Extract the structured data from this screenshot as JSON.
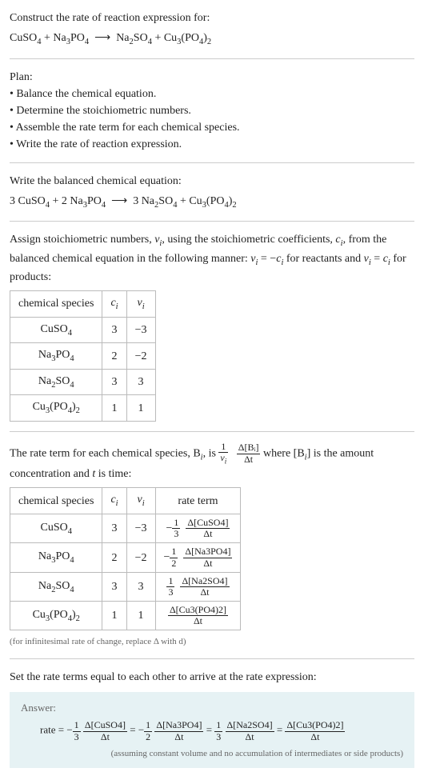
{
  "prompt": "Construct the rate of reaction expression for:",
  "unbalanced": {
    "lhs": [
      {
        "f": "CuSO",
        "s": "4"
      },
      {
        "f": "Na",
        "s": "3",
        "f2": "PO",
        "s2": "4"
      }
    ],
    "rhs": [
      {
        "f": "Na",
        "s": "2",
        "f2": "SO",
        "s2": "4"
      },
      {
        "f": "Cu",
        "s": "3",
        "f2": "(PO",
        "s2": "4",
        "f3": ")",
        "s3": "2"
      }
    ]
  },
  "plan_label": "Plan:",
  "plan": [
    "Balance the chemical equation.",
    "Determine the stoichiometric numbers.",
    "Assemble the rate term for each chemical species.",
    "Write the rate of reaction expression."
  ],
  "balanced_label": "Write the balanced chemical equation:",
  "balanced": {
    "lhs": [
      {
        "c": "3",
        "f": "CuSO",
        "s": "4"
      },
      {
        "c": "2",
        "f": "Na",
        "s": "3",
        "f2": "PO",
        "s2": "4"
      }
    ],
    "rhs": [
      {
        "c": "3",
        "f": "Na",
        "s": "2",
        "f2": "SO",
        "s2": "4"
      },
      {
        "c": "",
        "f": "Cu",
        "s": "3",
        "f2": "(PO",
        "s2": "4",
        "f3": ")",
        "s3": "2"
      }
    ]
  },
  "stoich_para_a": "Assign stoichiometric numbers, ",
  "stoich_para_b": ", using the stoichiometric coefficients, ",
  "stoich_para_c": ", from the balanced chemical equation in the following manner: ",
  "stoich_para_d": " for reactants and ",
  "stoich_para_e": " for products:",
  "nu_i": "ν",
  "c_i": "c",
  "table1": {
    "headers": [
      "chemical species",
      "cᵢ",
      "νᵢ"
    ],
    "rows": [
      [
        "CuSO₄",
        "3",
        "−3"
      ],
      [
        "Na₃PO₄",
        "2",
        "−2"
      ],
      [
        "Na₂SO₄",
        "3",
        "3"
      ],
      [
        "Cu₃(PO₄)₂",
        "1",
        "1"
      ]
    ]
  },
  "rate_para_a": "The rate term for each chemical species, B",
  "rate_para_b": ", is ",
  "rate_para_c": " where [B",
  "rate_para_d": "] is the amount concentration and ",
  "rate_para_e": " is time:",
  "t_var": "t",
  "rate_frac_outer_num": "1",
  "rate_frac_outer_den": "νᵢ",
  "rate_frac_inner_num": "Δ[Bᵢ]",
  "rate_frac_inner_den": "Δt",
  "table2": {
    "headers": [
      "chemical species",
      "cᵢ",
      "νᵢ",
      "rate term"
    ],
    "rows": [
      {
        "sp": "CuSO₄",
        "c": "3",
        "nu": "−3",
        "coef_num": "1",
        "coef_den": "3",
        "sign": "−",
        "conc": "Δ[CuSO4]"
      },
      {
        "sp": "Na₃PO₄",
        "c": "2",
        "nu": "−2",
        "coef_num": "1",
        "coef_den": "2",
        "sign": "−",
        "conc": "Δ[Na3PO4]"
      },
      {
        "sp": "Na₂SO₄",
        "c": "3",
        "nu": "3",
        "coef_num": "1",
        "coef_den": "3",
        "sign": "",
        "conc": "Δ[Na2SO4]"
      },
      {
        "sp": "Cu₃(PO₄)₂",
        "c": "1",
        "nu": "1",
        "coef_num": "",
        "coef_den": "",
        "sign": "",
        "conc": "Δ[Cu3(PO4)2]"
      }
    ],
    "dt": "Δt"
  },
  "inf_note": "(for infinitesimal rate of change, replace Δ with d)",
  "final_para": "Set the rate terms equal to each other to arrive at the rate expression:",
  "answer_label": "Answer:",
  "answer": {
    "lead": "rate = ",
    "terms": [
      {
        "sign": "−",
        "cnum": "1",
        "cden": "3",
        "num": "Δ[CuSO4]",
        "den": "Δt"
      },
      {
        "sign": "−",
        "cnum": "1",
        "cden": "2",
        "num": "Δ[Na3PO4]",
        "den": "Δt"
      },
      {
        "sign": "",
        "cnum": "1",
        "cden": "3",
        "num": "Δ[Na2SO4]",
        "den": "Δt"
      },
      {
        "sign": "",
        "cnum": "",
        "cden": "",
        "num": "Δ[Cu3(PO4)2]",
        "den": "Δt"
      }
    ],
    "eq": " = "
  },
  "answer_footnote": "(assuming constant volume and no accumulation of intermediates or side products)"
}
